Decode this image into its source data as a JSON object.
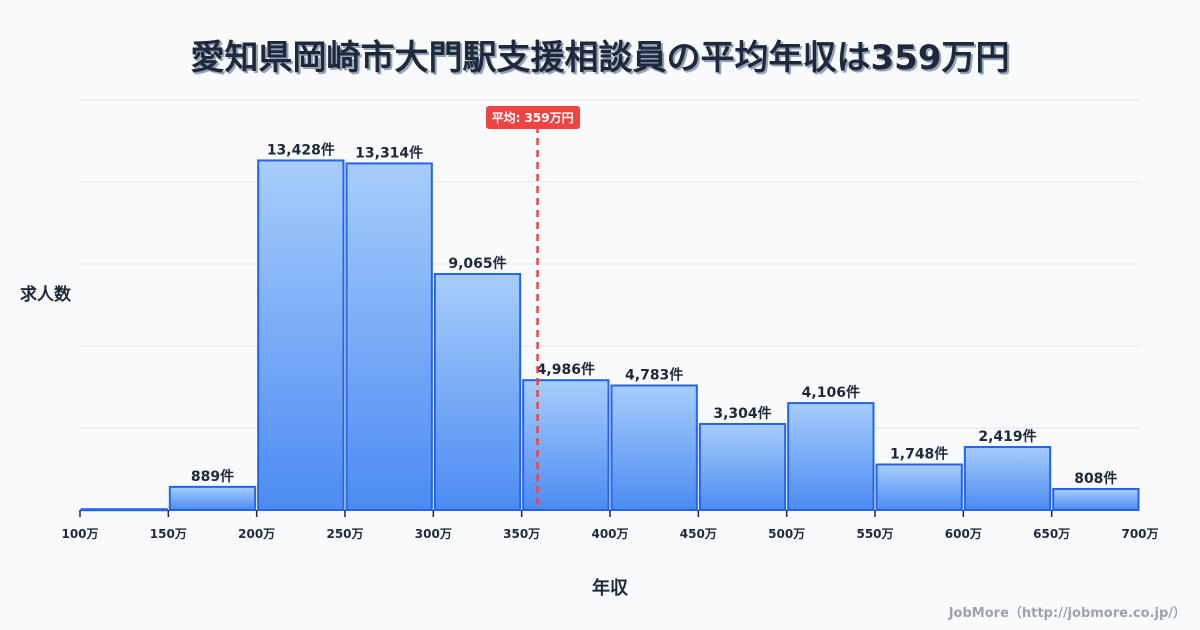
{
  "title": "愛知県岡崎市大門駅支援相談員の平均年収は359万円",
  "y_axis_label": "求人数",
  "x_axis_label": "年収",
  "average_badge": "平均: 359万円",
  "credit": "JobMore（http://jobmore.co.jp/）",
  "colors": {
    "bar_top": "#a7cdfb",
    "bar_bottom": "#4b8bf2",
    "bar_border": "#2563eb",
    "average_line": "#ef4444",
    "grid": "#e5e7eb",
    "text": "#1e293b"
  },
  "chart_data": {
    "type": "bar",
    "title": "愛知県岡崎市大門駅支援相談員の平均年収は359万円",
    "xlabel": "年収",
    "ylabel": "求人数",
    "x_ticks": [
      "100万",
      "150万",
      "200万",
      "250万",
      "300万",
      "350万",
      "400万",
      "450万",
      "500万",
      "550万",
      "600万",
      "650万",
      "700万"
    ],
    "categories": [
      "100-150万",
      "150-200万",
      "200-250万",
      "250-300万",
      "300-350万",
      "350-400万",
      "400-450万",
      "450-500万",
      "500-550万",
      "550-600万",
      "600-650万",
      "650-700万"
    ],
    "values": [
      30,
      889,
      13428,
      13314,
      9065,
      4986,
      4783,
      3304,
      4106,
      1748,
      2419,
      808
    ],
    "labels": [
      "",
      "889件",
      "13,428件",
      "13,314件",
      "9,065件",
      "4,986件",
      "4,783件",
      "3,304件",
      "4,106件",
      "1,748件",
      "2,419件",
      "808件"
    ],
    "average": 359,
    "average_label": "平均: 359万円",
    "x_range": [
      100,
      700
    ],
    "ylim": [
      0,
      15750
    ],
    "grid": true,
    "gridlines": 5,
    "legend": "none"
  }
}
